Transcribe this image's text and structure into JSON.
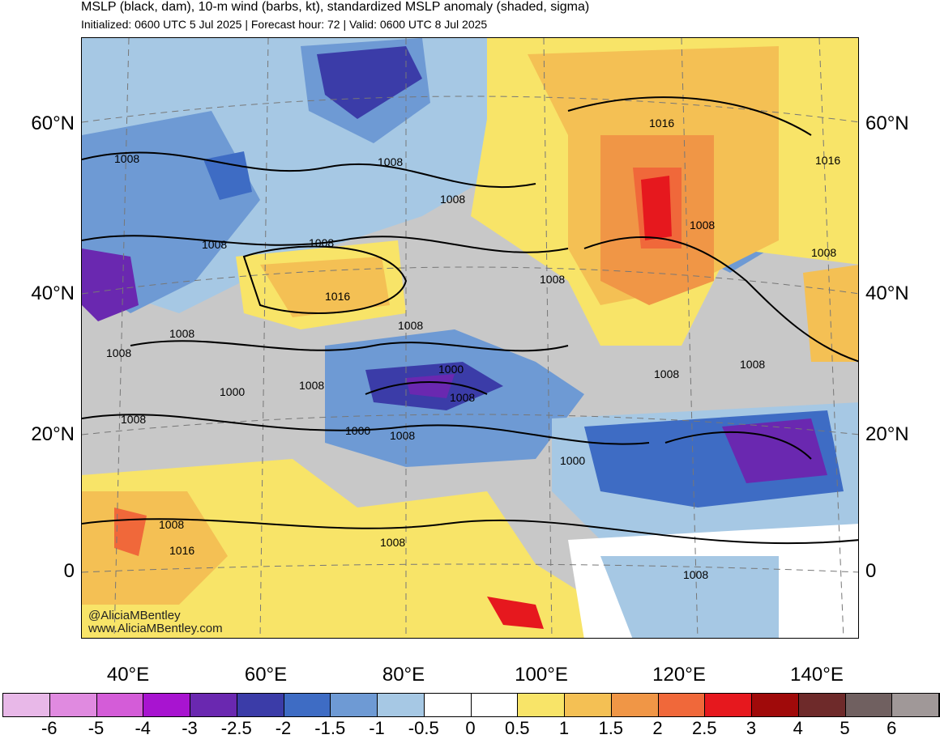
{
  "header": {
    "title": "MSLP (black, dam), 10-m wind (barbs, kt), standardized MSLP anomaly (shaded, sigma)",
    "subtitle": "Initialized: 0600 UTC 5 Jul 2025 | Forecast hour: 72 | Valid: 0600 UTC 8 Jul 2025"
  },
  "map": {
    "lat_labels": [
      "60°N",
      "40°N",
      "20°N",
      "0"
    ],
    "lon_labels": [
      "40°E",
      "60°E",
      "80°E",
      "100°E",
      "120°E",
      "140°E"
    ],
    "isobar_labels": [
      {
        "text": "1008"
      },
      {
        "text": "1008"
      },
      {
        "text": "1008"
      },
      {
        "text": "1016"
      },
      {
        "text": "1016"
      },
      {
        "text": "1008"
      },
      {
        "text": "1008"
      },
      {
        "text": "1008"
      },
      {
        "text": "1016"
      },
      {
        "text": "1008"
      },
      {
        "text": "1008"
      },
      {
        "text": "1008"
      },
      {
        "text": "1000"
      },
      {
        "text": "1000"
      },
      {
        "text": "1008"
      },
      {
        "text": "1008"
      },
      {
        "text": "1000"
      },
      {
        "text": "1008"
      },
      {
        "text": "1008"
      },
      {
        "text": "1000"
      },
      {
        "text": "1008"
      },
      {
        "text": "1008"
      },
      {
        "text": "1008"
      },
      {
        "text": "1008"
      },
      {
        "text": "1016"
      },
      {
        "text": "1008"
      },
      {
        "text": "1008"
      },
      {
        "text": "1008"
      }
    ],
    "credit_line1": "@AliciaMBentley",
    "credit_line2": "www.AliciaMBentley.com"
  },
  "colorbar": {
    "colors": [
      "#e8b8e8",
      "#e08ae0",
      "#d45cd8",
      "#a814d0",
      "#6a28b0",
      "#3b3ca8",
      "#3e6cc4",
      "#6e9ad4",
      "#a6c8e4",
      "#ffffff",
      "#ffffff",
      "#f8e468",
      "#f4c054",
      "#f09646",
      "#f0683a",
      "#e6181e",
      "#a00a0a",
      "#6e2a2a",
      "#706060",
      "#a09898"
    ],
    "labels": [
      "-6",
      "-5",
      "-4",
      "-3",
      "-2.5",
      "-2",
      "-1.5",
      "-1",
      "-0.5",
      "0",
      "0.5",
      "1",
      "1.5",
      "2",
      "2.5",
      "3",
      "4",
      "5",
      "6"
    ]
  }
}
